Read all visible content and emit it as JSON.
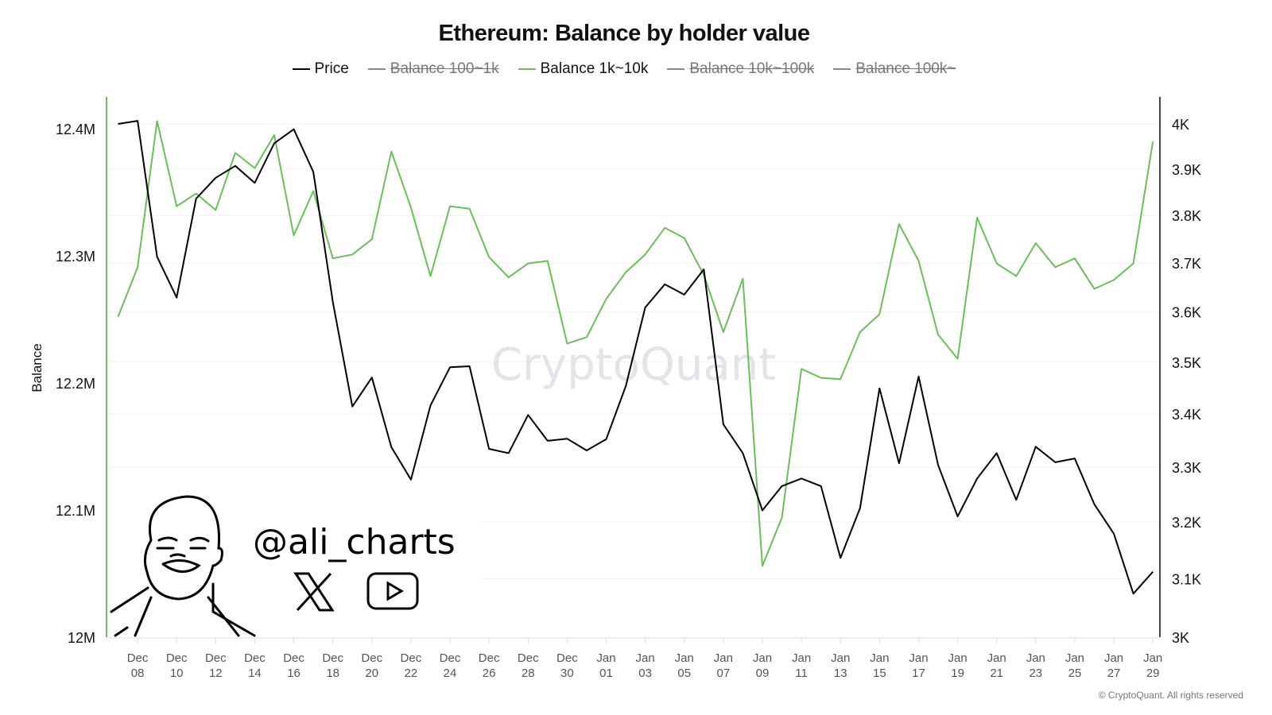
{
  "title": "Ethereum: Balance by holder value",
  "legend": [
    {
      "label": "Price",
      "color": "#000000",
      "hidden": false
    },
    {
      "label": "Balance 100~1k",
      "color": "#888888",
      "hidden": true
    },
    {
      "label": "Balance 1k~10k",
      "color": "#6abf5a",
      "hidden": false
    },
    {
      "label": "Balance 10k~100k",
      "color": "#888888",
      "hidden": true
    },
    {
      "label": "Balance 100k~",
      "color": "#888888",
      "hidden": true
    }
  ],
  "watermark": "CryptoQuant",
  "copyright": "© CryptoQuant. All rights reserved",
  "branding": {
    "handle": "@ali_charts",
    "icons": [
      "x-logo-icon",
      "youtube-icon",
      "avatar-sketch"
    ]
  },
  "chart_data": {
    "type": "line",
    "title": "Ethereum: Balance by holder value",
    "ylabel": "Balance",
    "y_left": {
      "range": [
        12.0,
        12.4
      ],
      "unit": "M",
      "ticks": [
        "12M",
        "12.1M",
        "12.2M",
        "12.3M",
        "12.4M"
      ],
      "tick_values": [
        12.0,
        12.1,
        12.2,
        12.3,
        12.4
      ]
    },
    "y_right": {
      "scale": "log",
      "range": [
        3000,
        4000
      ],
      "ticks": [
        "3K",
        "3.1K",
        "3.2K",
        "3.3K",
        "3.4K",
        "3.5K",
        "3.6K",
        "3.7K",
        "3.8K",
        "3.9K",
        "4K"
      ],
      "tick_values": [
        3000,
        3100,
        3200,
        3300,
        3400,
        3500,
        3600,
        3700,
        3800,
        3900,
        4000
      ]
    },
    "x_ticks": [
      {
        "month": "Dec",
        "day": "08"
      },
      {
        "month": "Dec",
        "day": "10"
      },
      {
        "month": "Dec",
        "day": "12"
      },
      {
        "month": "Dec",
        "day": "14"
      },
      {
        "month": "Dec",
        "day": "16"
      },
      {
        "month": "Dec",
        "day": "18"
      },
      {
        "month": "Dec",
        "day": "20"
      },
      {
        "month": "Dec",
        "day": "22"
      },
      {
        "month": "Dec",
        "day": "24"
      },
      {
        "month": "Dec",
        "day": "26"
      },
      {
        "month": "Dec",
        "day": "28"
      },
      {
        "month": "Dec",
        "day": "30"
      },
      {
        "month": "Jan",
        "day": "01"
      },
      {
        "month": "Jan",
        "day": "03"
      },
      {
        "month": "Jan",
        "day": "05"
      },
      {
        "month": "Jan",
        "day": "07"
      },
      {
        "month": "Jan",
        "day": "09"
      },
      {
        "month": "Jan",
        "day": "11"
      },
      {
        "month": "Jan",
        "day": "13"
      },
      {
        "month": "Jan",
        "day": "15"
      },
      {
        "month": "Jan",
        "day": "17"
      },
      {
        "month": "Jan",
        "day": "19"
      },
      {
        "month": "Jan",
        "day": "21"
      },
      {
        "month": "Jan",
        "day": "23"
      },
      {
        "month": "Jan",
        "day": "25"
      },
      {
        "month": "Jan",
        "day": "27"
      },
      {
        "month": "Jan",
        "day": "29"
      }
    ],
    "grid": true,
    "dates": [
      "Dec 07",
      "Dec 08",
      "Dec 09",
      "Dec 10",
      "Dec 11",
      "Dec 12",
      "Dec 13",
      "Dec 14",
      "Dec 15",
      "Dec 16",
      "Dec 17",
      "Dec 18",
      "Dec 19",
      "Dec 20",
      "Dec 21",
      "Dec 22",
      "Dec 23",
      "Dec 24",
      "Dec 25",
      "Dec 26",
      "Dec 27",
      "Dec 28",
      "Dec 29",
      "Dec 30",
      "Dec 31",
      "Jan 01",
      "Jan 02",
      "Jan 03",
      "Jan 04",
      "Jan 05",
      "Jan 06",
      "Jan 07",
      "Jan 08",
      "Jan 09",
      "Jan 10",
      "Jan 11",
      "Jan 12",
      "Jan 13",
      "Jan 14",
      "Jan 15",
      "Jan 16",
      "Jan 17",
      "Jan 18",
      "Jan 19",
      "Jan 20",
      "Jan 21",
      "Jan 22",
      "Jan 23",
      "Jan 24",
      "Jan 25",
      "Jan 26",
      "Jan 27",
      "Jan 28",
      "Jan 29"
    ],
    "series": [
      {
        "name": "Price",
        "axis": "right",
        "color": "#000000",
        "values": [
          4000,
          4007,
          3713,
          3629,
          3836,
          3881,
          3907,
          3870,
          3957,
          3988,
          3894,
          3620,
          3414,
          3470,
          3337,
          3277,
          3416,
          3490,
          3492,
          3334,
          3326,
          3398,
          3349,
          3353,
          3331,
          3352,
          3453,
          3609,
          3656,
          3635,
          3687,
          3380,
          3326,
          3221,
          3265,
          3279,
          3265,
          3136,
          3225,
          3449,
          3307,
          3472,
          3304,
          3210,
          3279,
          3326,
          3240,
          3338,
          3309,
          3316,
          3232,
          3179,
          3074,
          3112
        ]
      },
      {
        "name": "Balance 1k~10k",
        "axis": "left",
        "color": "#6abf5a",
        "values": [
          12.252,
          12.291,
          12.406,
          12.339,
          12.349,
          12.336,
          12.381,
          12.369,
          12.395,
          12.316,
          12.351,
          12.298,
          12.301,
          12.313,
          12.382,
          12.338,
          12.284,
          12.339,
          12.337,
          12.299,
          12.283,
          12.294,
          12.296,
          12.231,
          12.236,
          12.266,
          12.287,
          12.301,
          12.322,
          12.314,
          12.285,
          12.24,
          12.282,
          12.056,
          12.094,
          12.211,
          12.204,
          12.203,
          12.24,
          12.254,
          12.325,
          12.296,
          12.238,
          12.219,
          12.33,
          12.294,
          12.284,
          12.31,
          12.291,
          12.298,
          12.274,
          12.281,
          12.294,
          12.39
        ]
      }
    ]
  }
}
